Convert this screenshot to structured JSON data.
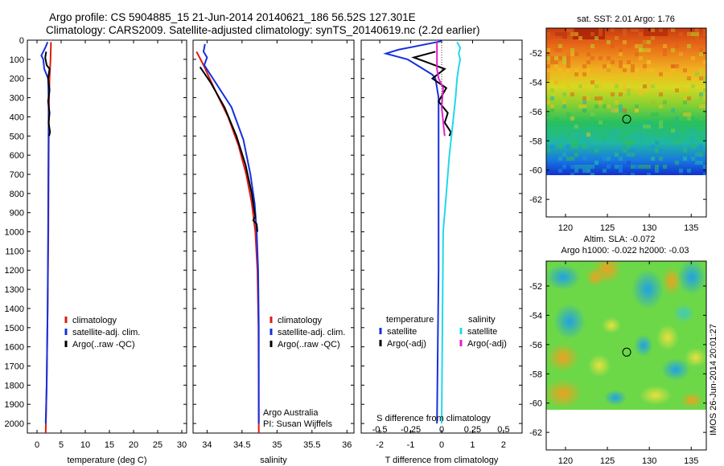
{
  "header": {
    "title_line1": "Argo profile: CS 5904885_15 21-Jun-2014 20140621_186 56.52S 127.301E",
    "title_line2": "Climatology: CARS2009. Satellite-adjusted climatology: synTS_20140619.nc (2.2d earlier)"
  },
  "colors": {
    "climatology": "#e01a10",
    "satellite": "#1430e0",
    "argo": "#000000",
    "salinity_satellite": "#22d8e8",
    "salinity_argo": "#e020d0"
  },
  "chart_data": [
    {
      "type": "line",
      "xlabel": "temperature (deg C)",
      "ylabel": "",
      "xlim": [
        -2,
        31
      ],
      "ylim": [
        0,
        2050
      ],
      "x_ticks": [
        "0",
        "5",
        "10",
        "15",
        "20",
        "25",
        "30"
      ],
      "x_tick_values": [
        0,
        5,
        10,
        15,
        20,
        25,
        30
      ],
      "y_ticks": [
        "0",
        "100",
        "200",
        "300",
        "400",
        "500",
        "600",
        "700",
        "800",
        "900",
        "1000",
        "1100",
        "1200",
        "1300",
        "1400",
        "1500",
        "1600",
        "1700",
        "1800",
        "1900",
        "2000"
      ],
      "y_tick_values": [
        0,
        100,
        200,
        300,
        400,
        500,
        600,
        700,
        800,
        900,
        1000,
        1100,
        1200,
        1300,
        1400,
        1500,
        1600,
        1700,
        1800,
        1900,
        2000
      ],
      "legend": [
        "climatology",
        "satellite-adj. clim.",
        "Argo(..raw -QC)"
      ],
      "series": [
        {
          "name": "climatology",
          "color": "#e01a10",
          "points": [
            [
              2.9,
              10
            ],
            [
              2.8,
              100
            ],
            [
              2.6,
              200
            ],
            [
              2.5,
              300
            ],
            [
              2.45,
              450
            ],
            [
              2.4,
              700
            ],
            [
              2.35,
              1000
            ],
            [
              2.2,
              1400
            ],
            [
              2.0,
              1800
            ],
            [
              1.8,
              2050
            ]
          ]
        },
        {
          "name": "satellite-adj. clim.",
          "color": "#1430e0",
          "points": [
            [
              2.2,
              10
            ],
            [
              1.7,
              40
            ],
            [
              0.9,
              80
            ],
            [
              1.3,
              100
            ],
            [
              1.5,
              150
            ],
            [
              2.3,
              200
            ],
            [
              2.4,
              300
            ],
            [
              2.4,
              450
            ],
            [
              2.35,
              700
            ],
            [
              2.3,
              1000
            ],
            [
              2.2,
              1400
            ],
            [
              2.0,
              1800
            ],
            [
              1.8,
              2000
            ]
          ]
        },
        {
          "name": "Argo(..raw -QC)",
          "color": "#000000",
          "points": [
            [
              1.9,
              60
            ],
            [
              1.7,
              90
            ],
            [
              2.0,
              130
            ],
            [
              2.6,
              150
            ],
            [
              2.3,
              200
            ],
            [
              2.6,
              260
            ],
            [
              2.3,
              320
            ],
            [
              2.6,
              380
            ],
            [
              2.4,
              430
            ],
            [
              2.7,
              480
            ],
            [
              2.5,
              500
            ]
          ]
        }
      ]
    },
    {
      "type": "line",
      "xlabel": "salinity",
      "ylabel": "",
      "xlim": [
        33.8,
        36.1
      ],
      "ylim": [
        0,
        2050
      ],
      "x_ticks": [
        "34",
        "34.5",
        "35",
        "35.5",
        "36"
      ],
      "x_tick_values": [
        34,
        34.5,
        35,
        35.5,
        36
      ],
      "legend": [
        "climatology",
        "satellite-adj. clim.",
        "Argo(..raw -QC)"
      ],
      "annotation": [
        "Argo Australia",
        "PI: Susan Wijffels"
      ],
      "series": [
        {
          "name": "climatology",
          "color": "#e01a10",
          "points": [
            [
              33.85,
              60
            ],
            [
              33.95,
              130
            ],
            [
              34.1,
              250
            ],
            [
              34.3,
              400
            ],
            [
              34.45,
              550
            ],
            [
              34.56,
              700
            ],
            [
              34.64,
              850
            ],
            [
              34.69,
              1000
            ],
            [
              34.72,
              1200
            ],
            [
              34.735,
              1500
            ],
            [
              34.74,
              2050
            ]
          ]
        },
        {
          "name": "satellite-adj. clim.",
          "color": "#1430e0",
          "points": [
            [
              33.97,
              20
            ],
            [
              33.95,
              60
            ],
            [
              34.0,
              90
            ],
            [
              33.96,
              130
            ],
            [
              34.12,
              220
            ],
            [
              34.35,
              350
            ],
            [
              34.52,
              520
            ],
            [
              34.62,
              700
            ],
            [
              34.68,
              850
            ],
            [
              34.71,
              1000
            ],
            [
              34.73,
              1200
            ],
            [
              34.74,
              1500
            ],
            [
              34.74,
              1800
            ],
            [
              34.74,
              2000
            ]
          ]
        },
        {
          "name": "Argo(..raw -QC)",
          "color": "#000000",
          "points": [
            [
              33.9,
              140
            ],
            [
              34.05,
              220
            ],
            [
              34.25,
              350
            ],
            [
              34.42,
              500
            ],
            [
              34.55,
              650
            ],
            [
              34.64,
              800
            ],
            [
              34.68,
              900
            ],
            [
              34.69,
              920
            ],
            [
              34.66,
              940
            ],
            [
              34.71,
              960
            ],
            [
              34.72,
              1000
            ]
          ]
        }
      ]
    },
    {
      "type": "line",
      "xlabel": "T difference from climatology",
      "xlabel_top": "S difference from climatology",
      "xlim": [
        -2.6,
        2.6
      ],
      "ylim": [
        0,
        2050
      ],
      "x_ticks": [
        "-2",
        "-1",
        "0",
        "1",
        "2"
      ],
      "x_tick_values": [
        -2,
        -1,
        0,
        1,
        2
      ],
      "x_ticks_top": [
        "-0.5",
        "-0.25",
        "0",
        "0.25",
        "0.5"
      ],
      "legend_temperature_title": "temperature",
      "legend_salinity_title": "salinity",
      "legend": [
        "satellite",
        "Argo(-adj)",
        "satellite",
        "Argo(-adj)"
      ],
      "series": [
        {
          "name": "satellite",
          "color": "#1430e0",
          "points": [
            [
              0,
              5
            ],
            [
              -1.4,
              50
            ],
            [
              -1.8,
              70
            ],
            [
              -1.1,
              100
            ],
            [
              -0.7,
              140
            ],
            [
              -0.3,
              180
            ],
            [
              -0.2,
              200
            ],
            [
              -0.1,
              300
            ],
            [
              -0.1,
              500
            ],
            [
              -0.1,
              800
            ],
            [
              -0.1,
              1200
            ],
            [
              -0.15,
              2000
            ]
          ]
        },
        {
          "name": "Argo(-adj)",
          "color": "#000000",
          "points": [
            [
              -0.2,
              60
            ],
            [
              -0.9,
              90
            ],
            [
              -0.4,
              120
            ],
            [
              0.1,
              150
            ],
            [
              -0.3,
              200
            ],
            [
              0.15,
              250
            ],
            [
              -0.1,
              320
            ],
            [
              0.2,
              380
            ],
            [
              0.1,
              430
            ],
            [
              0.3,
              480
            ],
            [
              0.25,
              500
            ]
          ]
        },
        {
          "name": "salinity satellite",
          "color": "#22d8e8",
          "points": [
            [
              0.5,
              10
            ],
            [
              0.6,
              40
            ],
            [
              0.55,
              70
            ],
            [
              0.6,
              100
            ],
            [
              0.55,
              140
            ],
            [
              0.5,
              200
            ],
            [
              0.45,
              300
            ],
            [
              0.35,
              450
            ],
            [
              0.25,
              600
            ],
            [
              0.15,
              800
            ],
            [
              0.05,
              1000
            ],
            [
              0.0,
              2000
            ]
          ]
        },
        {
          "name": "salinity Argo(-adj)",
          "color": "#e020d0",
          "points": [
            [
              -0.15,
              10
            ],
            [
              -0.15,
              100
            ],
            [
              -0.15,
              150
            ],
            [
              -0.1,
              200
            ],
            [
              0.05,
              250
            ],
            [
              0.0,
              350
            ],
            [
              0.1,
              500
            ]
          ]
        }
      ]
    },
    {
      "type": "heatmap",
      "title": "sat. SST: 2.01  Argo: 1.76",
      "x_ticks": [
        "120",
        "125",
        "130",
        "135"
      ],
      "x_tick_values": [
        120,
        125,
        130,
        135
      ],
      "y_ticks": [
        "-52",
        "-54",
        "-56",
        "-58",
        "-60",
        "-62"
      ],
      "y_tick_values": [
        -52,
        -54,
        -56,
        -58,
        -60,
        -62
      ],
      "xlim": [
        117.7,
        136.8
      ],
      "ylim": [
        -63.2,
        -50.3
      ],
      "data_south_limit": -60,
      "marker": [
        127.3,
        -56.52
      ]
    },
    {
      "type": "heatmap",
      "title_line1": "Altim. SLA: -0.072",
      "title_line2": "Argo h1000: -0.022  h2000: -0.03",
      "x_ticks": [
        "120",
        "125",
        "130",
        "135"
      ],
      "x_tick_values": [
        120,
        125,
        130,
        135
      ],
      "y_ticks": [
        "-52",
        "-54",
        "-56",
        "-58",
        "-60",
        "-62"
      ],
      "y_tick_values": [
        -52,
        -54,
        -56,
        -58,
        -60,
        -62
      ],
      "xlim": [
        117.7,
        136.8
      ],
      "ylim": [
        -63.2,
        -50.3
      ],
      "data_south_limit": -60,
      "marker": [
        127.3,
        -56.52
      ]
    }
  ],
  "timestamp": "IMOS 26-Jun-2014 20:01:27"
}
